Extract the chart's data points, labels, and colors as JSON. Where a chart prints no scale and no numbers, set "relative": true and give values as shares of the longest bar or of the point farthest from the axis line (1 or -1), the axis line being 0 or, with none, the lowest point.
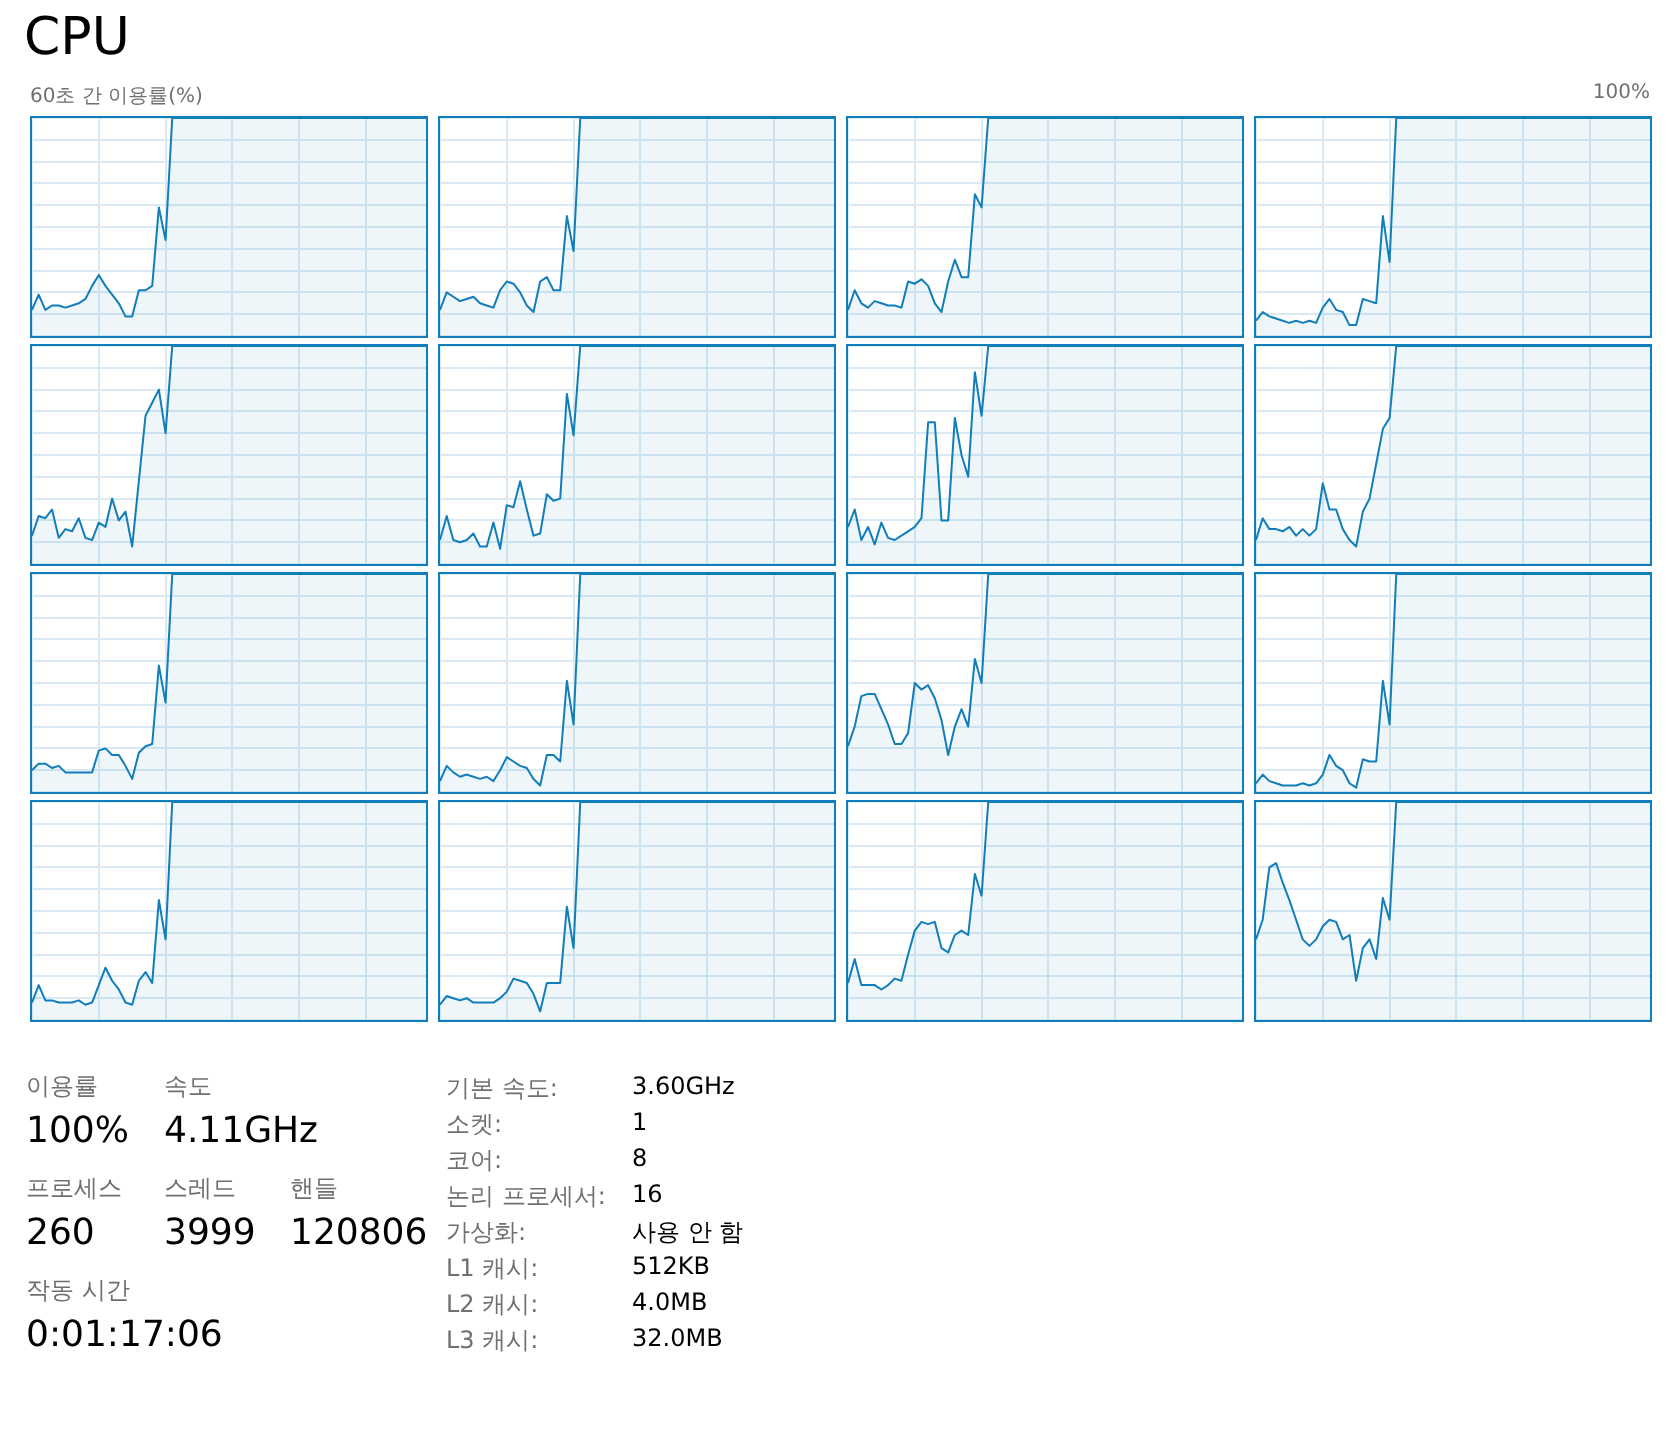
{
  "chart_data": [
    {
      "type": "other",
      "title": "CPU",
      "annotations": [
        "60초 간 이용률(%)",
        "100%"
      ]
    },
    {
      "type": "area",
      "relative": true,
      "grid": true,
      "color": "#117dbb",
      "categories": [
        null,
        null,
        null,
        null,
        null,
        null,
        null,
        null,
        null,
        null,
        null,
        null,
        null,
        null,
        null,
        null,
        null,
        null,
        null,
        null,
        null,
        null,
        null,
        null,
        null,
        null,
        null,
        null,
        null,
        null,
        null,
        null,
        null,
        null,
        null,
        null,
        null,
        null,
        null,
        null,
        null,
        null,
        null,
        null,
        null,
        null,
        null,
        null,
        null,
        null,
        null,
        null,
        null,
        null,
        null,
        null,
        null,
        null,
        null,
        null
      ],
      "values": [
        0.12,
        0.19,
        0.12,
        0.14,
        0.14,
        0.13,
        0.14,
        0.15,
        0.17,
        0.23,
        0.28,
        0.23,
        0.19,
        0.15,
        0.09,
        0.09,
        0.21,
        0.21,
        0.23,
        0.59,
        0.44,
        1,
        1,
        1,
        1,
        1,
        1,
        1,
        1,
        1,
        1,
        1,
        1,
        1,
        1,
        1,
        1,
        1,
        1,
        1,
        1,
        1,
        1,
        1,
        1,
        1,
        1,
        1,
        1,
        1,
        1,
        1,
        1,
        1,
        1,
        1,
        1,
        1,
        1,
        1
      ]
    },
    {
      "type": "area",
      "relative": true,
      "grid": true,
      "color": "#117dbb",
      "categories": [
        null,
        null,
        null,
        null,
        null,
        null,
        null,
        null,
        null,
        null,
        null,
        null,
        null,
        null,
        null,
        null,
        null,
        null,
        null,
        null,
        null,
        null,
        null,
        null,
        null,
        null,
        null,
        null,
        null,
        null,
        null,
        null,
        null,
        null,
        null,
        null,
        null,
        null,
        null,
        null,
        null,
        null,
        null,
        null,
        null,
        null,
        null,
        null,
        null,
        null,
        null,
        null,
        null,
        null,
        null,
        null,
        null,
        null,
        null,
        null
      ],
      "values": [
        0.12,
        0.2,
        0.18,
        0.16,
        0.17,
        0.18,
        0.15,
        0.14,
        0.13,
        0.21,
        0.25,
        0.24,
        0.2,
        0.14,
        0.11,
        0.25,
        0.27,
        0.21,
        0.21,
        0.55,
        0.39,
        1,
        1,
        1,
        1,
        1,
        1,
        1,
        1,
        1,
        1,
        1,
        1,
        1,
        1,
        1,
        1,
        1,
        1,
        1,
        1,
        1,
        1,
        1,
        1,
        1,
        1,
        1,
        1,
        1,
        1,
        1,
        1,
        1,
        1,
        1,
        1,
        1,
        1,
        1
      ]
    },
    {
      "type": "area",
      "relative": true,
      "grid": true,
      "color": "#117dbb",
      "categories": [
        null,
        null,
        null,
        null,
        null,
        null,
        null,
        null,
        null,
        null,
        null,
        null,
        null,
        null,
        null,
        null,
        null,
        null,
        null,
        null,
        null,
        null,
        null,
        null,
        null,
        null,
        null,
        null,
        null,
        null,
        null,
        null,
        null,
        null,
        null,
        null,
        null,
        null,
        null,
        null,
        null,
        null,
        null,
        null,
        null,
        null,
        null,
        null,
        null,
        null,
        null,
        null,
        null,
        null,
        null,
        null,
        null,
        null,
        null,
        null
      ],
      "values": [
        0.12,
        0.21,
        0.15,
        0.13,
        0.16,
        0.15,
        0.14,
        0.14,
        0.13,
        0.25,
        0.24,
        0.26,
        0.23,
        0.15,
        0.11,
        0.25,
        0.35,
        0.27,
        0.27,
        0.65,
        0.59,
        1,
        1,
        1,
        1,
        1,
        1,
        1,
        1,
        1,
        1,
        1,
        1,
        1,
        1,
        1,
        1,
        1,
        1,
        1,
        1,
        1,
        1,
        1,
        1,
        1,
        1,
        1,
        1,
        1,
        1,
        1,
        1,
        1,
        1,
        1,
        1,
        1,
        1,
        1
      ]
    },
    {
      "type": "area",
      "relative": true,
      "grid": true,
      "color": "#117dbb",
      "categories": [
        null,
        null,
        null,
        null,
        null,
        null,
        null,
        null,
        null,
        null,
        null,
        null,
        null,
        null,
        null,
        null,
        null,
        null,
        null,
        null,
        null,
        null,
        null,
        null,
        null,
        null,
        null,
        null,
        null,
        null,
        null,
        null,
        null,
        null,
        null,
        null,
        null,
        null,
        null,
        null,
        null,
        null,
        null,
        null,
        null,
        null,
        null,
        null,
        null,
        null,
        null,
        null,
        null,
        null,
        null,
        null,
        null,
        null,
        null,
        null
      ],
      "values": [
        0.07,
        0.11,
        0.09,
        0.08,
        0.07,
        0.06,
        0.07,
        0.06,
        0.07,
        0.06,
        0.13,
        0.17,
        0.12,
        0.11,
        0.05,
        0.05,
        0.17,
        0.16,
        0.15,
        0.55,
        0.34,
        1,
        1,
        1,
        1,
        1,
        1,
        1,
        1,
        1,
        1,
        1,
        1,
        1,
        1,
        1,
        1,
        1,
        1,
        1,
        1,
        1,
        1,
        1,
        1,
        1,
        1,
        1,
        1,
        1,
        1,
        1,
        1,
        1,
        1,
        1,
        1,
        1,
        1,
        1
      ]
    },
    {
      "type": "area",
      "relative": true,
      "grid": true,
      "color": "#117dbb",
      "categories": [
        null,
        null,
        null,
        null,
        null,
        null,
        null,
        null,
        null,
        null,
        null,
        null,
        null,
        null,
        null,
        null,
        null,
        null,
        null,
        null,
        null,
        null,
        null,
        null,
        null,
        null,
        null,
        null,
        null,
        null,
        null,
        null,
        null,
        null,
        null,
        null,
        null,
        null,
        null,
        null,
        null,
        null,
        null,
        null,
        null,
        null,
        null,
        null,
        null,
        null,
        null,
        null,
        null,
        null,
        null,
        null,
        null,
        null,
        null,
        null
      ],
      "values": [
        0.13,
        0.22,
        0.21,
        0.25,
        0.12,
        0.16,
        0.15,
        0.21,
        0.12,
        0.11,
        0.19,
        0.17,
        0.3,
        0.2,
        0.24,
        0.08,
        0.38,
        0.68,
        0.74,
        0.8,
        0.6,
        1,
        1,
        1,
        1,
        1,
        1,
        1,
        1,
        1,
        1,
        1,
        1,
        1,
        1,
        1,
        1,
        1,
        1,
        1,
        1,
        1,
        1,
        1,
        1,
        1,
        1,
        1,
        1,
        1,
        1,
        1,
        1,
        1,
        1,
        1,
        1,
        1,
        1,
        1
      ]
    },
    {
      "type": "area",
      "relative": true,
      "grid": true,
      "color": "#117dbb",
      "categories": [
        null,
        null,
        null,
        null,
        null,
        null,
        null,
        null,
        null,
        null,
        null,
        null,
        null,
        null,
        null,
        null,
        null,
        null,
        null,
        null,
        null,
        null,
        null,
        null,
        null,
        null,
        null,
        null,
        null,
        null,
        null,
        null,
        null,
        null,
        null,
        null,
        null,
        null,
        null,
        null,
        null,
        null,
        null,
        null,
        null,
        null,
        null,
        null,
        null,
        null,
        null,
        null,
        null,
        null,
        null,
        null,
        null,
        null,
        null,
        null
      ],
      "values": [
        0.11,
        0.22,
        0.11,
        0.1,
        0.11,
        0.14,
        0.08,
        0.08,
        0.19,
        0.07,
        0.27,
        0.26,
        0.38,
        0.25,
        0.13,
        0.14,
        0.32,
        0.29,
        0.3,
        0.78,
        0.59,
        1,
        1,
        1,
        1,
        1,
        1,
        1,
        1,
        1,
        1,
        1,
        1,
        1,
        1,
        1,
        1,
        1,
        1,
        1,
        1,
        1,
        1,
        1,
        1,
        1,
        1,
        1,
        1,
        1,
        1,
        1,
        1,
        1,
        1,
        1,
        1,
        1,
        1,
        1
      ]
    },
    {
      "type": "area",
      "relative": true,
      "grid": true,
      "color": "#117dbb",
      "categories": [
        null,
        null,
        null,
        null,
        null,
        null,
        null,
        null,
        null,
        null,
        null,
        null,
        null,
        null,
        null,
        null,
        null,
        null,
        null,
        null,
        null,
        null,
        null,
        null,
        null,
        null,
        null,
        null,
        null,
        null,
        null,
        null,
        null,
        null,
        null,
        null,
        null,
        null,
        null,
        null,
        null,
        null,
        null,
        null,
        null,
        null,
        null,
        null,
        null,
        null,
        null,
        null,
        null,
        null,
        null,
        null,
        null,
        null,
        null,
        null
      ],
      "values": [
        0.17,
        0.25,
        0.11,
        0.17,
        0.09,
        0.19,
        0.12,
        0.11,
        0.13,
        0.15,
        0.17,
        0.21,
        0.65,
        0.65,
        0.2,
        0.2,
        0.67,
        0.5,
        0.4,
        0.88,
        0.68,
        1,
        1,
        1,
        1,
        1,
        1,
        1,
        1,
        1,
        1,
        1,
        1,
        1,
        1,
        1,
        1,
        1,
        1,
        1,
        1,
        1,
        1,
        1,
        1,
        1,
        1,
        1,
        1,
        1,
        1,
        1,
        1,
        1,
        1,
        1,
        1,
        1,
        1,
        1
      ]
    },
    {
      "type": "area",
      "relative": true,
      "grid": true,
      "color": "#117dbb",
      "categories": [
        null,
        null,
        null,
        null,
        null,
        null,
        null,
        null,
        null,
        null,
        null,
        null,
        null,
        null,
        null,
        null,
        null,
        null,
        null,
        null,
        null,
        null,
        null,
        null,
        null,
        null,
        null,
        null,
        null,
        null,
        null,
        null,
        null,
        null,
        null,
        null,
        null,
        null,
        null,
        null,
        null,
        null,
        null,
        null,
        null,
        null,
        null,
        null,
        null,
        null,
        null,
        null,
        null,
        null,
        null,
        null,
        null,
        null,
        null,
        null
      ],
      "values": [
        0.11,
        0.21,
        0.16,
        0.16,
        0.15,
        0.17,
        0.13,
        0.16,
        0.13,
        0.16,
        0.37,
        0.25,
        0.25,
        0.16,
        0.11,
        0.08,
        0.24,
        0.3,
        0.46,
        0.62,
        0.67,
        1,
        1,
        1,
        1,
        1,
        1,
        1,
        1,
        1,
        1,
        1,
        1,
        1,
        1,
        1,
        1,
        1,
        1,
        1,
        1,
        1,
        1,
        1,
        1,
        1,
        1,
        1,
        1,
        1,
        1,
        1,
        1,
        1,
        1,
        1,
        1,
        1,
        1,
        1
      ]
    },
    {
      "type": "area",
      "relative": true,
      "grid": true,
      "color": "#117dbb",
      "categories": [
        null,
        null,
        null,
        null,
        null,
        null,
        null,
        null,
        null,
        null,
        null,
        null,
        null,
        null,
        null,
        null,
        null,
        null,
        null,
        null,
        null,
        null,
        null,
        null,
        null,
        null,
        null,
        null,
        null,
        null,
        null,
        null,
        null,
        null,
        null,
        null,
        null,
        null,
        null,
        null,
        null,
        null,
        null,
        null,
        null,
        null,
        null,
        null,
        null,
        null,
        null,
        null,
        null,
        null,
        null,
        null,
        null,
        null,
        null,
        null
      ],
      "values": [
        0.1,
        0.13,
        0.13,
        0.11,
        0.12,
        0.09,
        0.09,
        0.09,
        0.09,
        0.09,
        0.19,
        0.2,
        0.17,
        0.17,
        0.12,
        0.06,
        0.18,
        0.21,
        0.22,
        0.58,
        0.41,
        1,
        1,
        1,
        1,
        1,
        1,
        1,
        1,
        1,
        1,
        1,
        1,
        1,
        1,
        1,
        1,
        1,
        1,
        1,
        1,
        1,
        1,
        1,
        1,
        1,
        1,
        1,
        1,
        1,
        1,
        1,
        1,
        1,
        1,
        1,
        1,
        1,
        1,
        1
      ]
    },
    {
      "type": "area",
      "relative": true,
      "grid": true,
      "color": "#117dbb",
      "categories": [
        null,
        null,
        null,
        null,
        null,
        null,
        null,
        null,
        null,
        null,
        null,
        null,
        null,
        null,
        null,
        null,
        null,
        null,
        null,
        null,
        null,
        null,
        null,
        null,
        null,
        null,
        null,
        null,
        null,
        null,
        null,
        null,
        null,
        null,
        null,
        null,
        null,
        null,
        null,
        null,
        null,
        null,
        null,
        null,
        null,
        null,
        null,
        null,
        null,
        null,
        null,
        null,
        null,
        null,
        null,
        null,
        null,
        null,
        null,
        null
      ],
      "values": [
        0.05,
        0.12,
        0.09,
        0.07,
        0.08,
        0.07,
        0.06,
        0.07,
        0.05,
        0.1,
        0.16,
        0.14,
        0.12,
        0.11,
        0.06,
        0.03,
        0.17,
        0.17,
        0.14,
        0.51,
        0.31,
        1,
        1,
        1,
        1,
        1,
        1,
        1,
        1,
        1,
        1,
        1,
        1,
        1,
        1,
        1,
        1,
        1,
        1,
        1,
        1,
        1,
        1,
        1,
        1,
        1,
        1,
        1,
        1,
        1,
        1,
        1,
        1,
        1,
        1,
        1,
        1,
        1,
        1,
        1
      ]
    },
    {
      "type": "area",
      "relative": true,
      "grid": true,
      "color": "#117dbb",
      "categories": [
        null,
        null,
        null,
        null,
        null,
        null,
        null,
        null,
        null,
        null,
        null,
        null,
        null,
        null,
        null,
        null,
        null,
        null,
        null,
        null,
        null,
        null,
        null,
        null,
        null,
        null,
        null,
        null,
        null,
        null,
        null,
        null,
        null,
        null,
        null,
        null,
        null,
        null,
        null,
        null,
        null,
        null,
        null,
        null,
        null,
        null,
        null,
        null,
        null,
        null,
        null,
        null,
        null,
        null,
        null,
        null,
        null,
        null,
        null,
        null
      ],
      "values": [
        0.21,
        0.3,
        0.44,
        0.45,
        0.45,
        0.38,
        0.31,
        0.22,
        0.22,
        0.27,
        0.5,
        0.47,
        0.49,
        0.43,
        0.33,
        0.17,
        0.3,
        0.38,
        0.3,
        0.61,
        0.5,
        1,
        1,
        1,
        1,
        1,
        1,
        1,
        1,
        1,
        1,
        1,
        1,
        1,
        1,
        1,
        1,
        1,
        1,
        1,
        1,
        1,
        1,
        1,
        1,
        1,
        1,
        1,
        1,
        1,
        1,
        1,
        1,
        1,
        1,
        1,
        1,
        1,
        1,
        1
      ]
    },
    {
      "type": "area",
      "relative": true,
      "grid": true,
      "color": "#117dbb",
      "categories": [
        null,
        null,
        null,
        null,
        null,
        null,
        null,
        null,
        null,
        null,
        null,
        null,
        null,
        null,
        null,
        null,
        null,
        null,
        null,
        null,
        null,
        null,
        null,
        null,
        null,
        null,
        null,
        null,
        null,
        null,
        null,
        null,
        null,
        null,
        null,
        null,
        null,
        null,
        null,
        null,
        null,
        null,
        null,
        null,
        null,
        null,
        null,
        null,
        null,
        null,
        null,
        null,
        null,
        null,
        null,
        null,
        null,
        null,
        null,
        null
      ],
      "values": [
        0.04,
        0.08,
        0.05,
        0.04,
        0.03,
        0.03,
        0.03,
        0.04,
        0.03,
        0.04,
        0.08,
        0.17,
        0.12,
        0.1,
        0.04,
        0.02,
        0.15,
        0.14,
        0.14,
        0.51,
        0.31,
        1,
        1,
        1,
        1,
        1,
        1,
        1,
        1,
        1,
        1,
        1,
        1,
        1,
        1,
        1,
        1,
        1,
        1,
        1,
        1,
        1,
        1,
        1,
        1,
        1,
        1,
        1,
        1,
        1,
        1,
        1,
        1,
        1,
        1,
        1,
        1,
        1,
        1,
        1
      ]
    },
    {
      "type": "area",
      "relative": true,
      "grid": true,
      "color": "#117dbb",
      "categories": [
        null,
        null,
        null,
        null,
        null,
        null,
        null,
        null,
        null,
        null,
        null,
        null,
        null,
        null,
        null,
        null,
        null,
        null,
        null,
        null,
        null,
        null,
        null,
        null,
        null,
        null,
        null,
        null,
        null,
        null,
        null,
        null,
        null,
        null,
        null,
        null,
        null,
        null,
        null,
        null,
        null,
        null,
        null,
        null,
        null,
        null,
        null,
        null,
        null,
        null,
        null,
        null,
        null,
        null,
        null,
        null,
        null,
        null,
        null,
        null
      ],
      "values": [
        0.08,
        0.16,
        0.09,
        0.09,
        0.08,
        0.08,
        0.08,
        0.09,
        0.07,
        0.08,
        0.16,
        0.24,
        0.18,
        0.14,
        0.08,
        0.07,
        0.18,
        0.22,
        0.17,
        0.55,
        0.37,
        1,
        1,
        1,
        1,
        1,
        1,
        1,
        1,
        1,
        1,
        1,
        1,
        1,
        1,
        1,
        1,
        1,
        1,
        1,
        1,
        1,
        1,
        1,
        1,
        1,
        1,
        1,
        1,
        1,
        1,
        1,
        1,
        1,
        1,
        1,
        1,
        1,
        1,
        1
      ]
    },
    {
      "type": "area",
      "relative": true,
      "grid": true,
      "color": "#117dbb",
      "categories": [
        null,
        null,
        null,
        null,
        null,
        null,
        null,
        null,
        null,
        null,
        null,
        null,
        null,
        null,
        null,
        null,
        null,
        null,
        null,
        null,
        null,
        null,
        null,
        null,
        null,
        null,
        null,
        null,
        null,
        null,
        null,
        null,
        null,
        null,
        null,
        null,
        null,
        null,
        null,
        null,
        null,
        null,
        null,
        null,
        null,
        null,
        null,
        null,
        null,
        null,
        null,
        null,
        null,
        null,
        null,
        null,
        null,
        null,
        null,
        null
      ],
      "values": [
        0.07,
        0.11,
        0.1,
        0.09,
        0.1,
        0.08,
        0.08,
        0.08,
        0.08,
        0.1,
        0.13,
        0.19,
        0.18,
        0.17,
        0.12,
        0.04,
        0.17,
        0.17,
        0.17,
        0.52,
        0.33,
        1,
        1,
        1,
        1,
        1,
        1,
        1,
        1,
        1,
        1,
        1,
        1,
        1,
        1,
        1,
        1,
        1,
        1,
        1,
        1,
        1,
        1,
        1,
        1,
        1,
        1,
        1,
        1,
        1,
        1,
        1,
        1,
        1,
        1,
        1,
        1,
        1,
        1,
        1
      ]
    },
    {
      "type": "area",
      "relative": true,
      "grid": true,
      "color": "#117dbb",
      "categories": [
        null,
        null,
        null,
        null,
        null,
        null,
        null,
        null,
        null,
        null,
        null,
        null,
        null,
        null,
        null,
        null,
        null,
        null,
        null,
        null,
        null,
        null,
        null,
        null,
        null,
        null,
        null,
        null,
        null,
        null,
        null,
        null,
        null,
        null,
        null,
        null,
        null,
        null,
        null,
        null,
        null,
        null,
        null,
        null,
        null,
        null,
        null,
        null,
        null,
        null,
        null,
        null,
        null,
        null,
        null,
        null,
        null,
        null,
        null,
        null
      ],
      "values": [
        0.17,
        0.28,
        0.16,
        0.16,
        0.16,
        0.14,
        0.16,
        0.19,
        0.18,
        0.3,
        0.41,
        0.45,
        0.44,
        0.45,
        0.33,
        0.31,
        0.39,
        0.41,
        0.39,
        0.67,
        0.57,
        1,
        1,
        1,
        1,
        1,
        1,
        1,
        1,
        1,
        1,
        1,
        1,
        1,
        1,
        1,
        1,
        1,
        1,
        1,
        1,
        1,
        1,
        1,
        1,
        1,
        1,
        1,
        1,
        1,
        1,
        1,
        1,
        1,
        1,
        1,
        1,
        1,
        1,
        1
      ]
    },
    {
      "type": "area",
      "relative": true,
      "grid": true,
      "color": "#117dbb",
      "categories": [
        null,
        null,
        null,
        null,
        null,
        null,
        null,
        null,
        null,
        null,
        null,
        null,
        null,
        null,
        null,
        null,
        null,
        null,
        null,
        null,
        null,
        null,
        null,
        null,
        null,
        null,
        null,
        null,
        null,
        null,
        null,
        null,
        null,
        null,
        null,
        null,
        null,
        null,
        null,
        null,
        null,
        null,
        null,
        null,
        null,
        null,
        null,
        null,
        null,
        null,
        null,
        null,
        null,
        null,
        null,
        null,
        null,
        null,
        null,
        null
      ],
      "values": [
        0.37,
        0.46,
        0.7,
        0.72,
        0.63,
        0.55,
        0.46,
        0.37,
        0.34,
        0.37,
        0.43,
        0.46,
        0.45,
        0.37,
        0.39,
        0.18,
        0.33,
        0.37,
        0.28,
        0.56,
        0.46,
        1,
        1,
        1,
        1,
        1,
        1,
        1,
        1,
        1,
        1,
        1,
        1,
        1,
        1,
        1,
        1,
        1,
        1,
        1,
        1,
        1,
        1,
        1,
        1,
        1,
        1,
        1,
        1,
        1,
        1,
        1,
        1,
        1,
        1,
        1,
        1,
        1,
        1,
        1
      ]
    },
    {
      "type": "other",
      "annotations": [
        "이용률",
        "100%",
        "속도",
        "4.11GHz",
        "프로세스",
        "260",
        "스레드",
        "3999",
        "핸들",
        "120806",
        "작동 시간",
        "0:01:17:06"
      ]
    },
    {
      "type": "other",
      "annotations": [
        "기본 속도:",
        "3.60GHz",
        "소켓:",
        "1",
        "코어:",
        "8",
        "논리 프로세서:",
        "16",
        "가상화:",
        "사용 안 함",
        "L1 캐시:",
        "512KB",
        "L2 캐시:",
        "4.0MB",
        "L3 캐시:",
        "32.0MB"
      ]
    }
  ]
}
